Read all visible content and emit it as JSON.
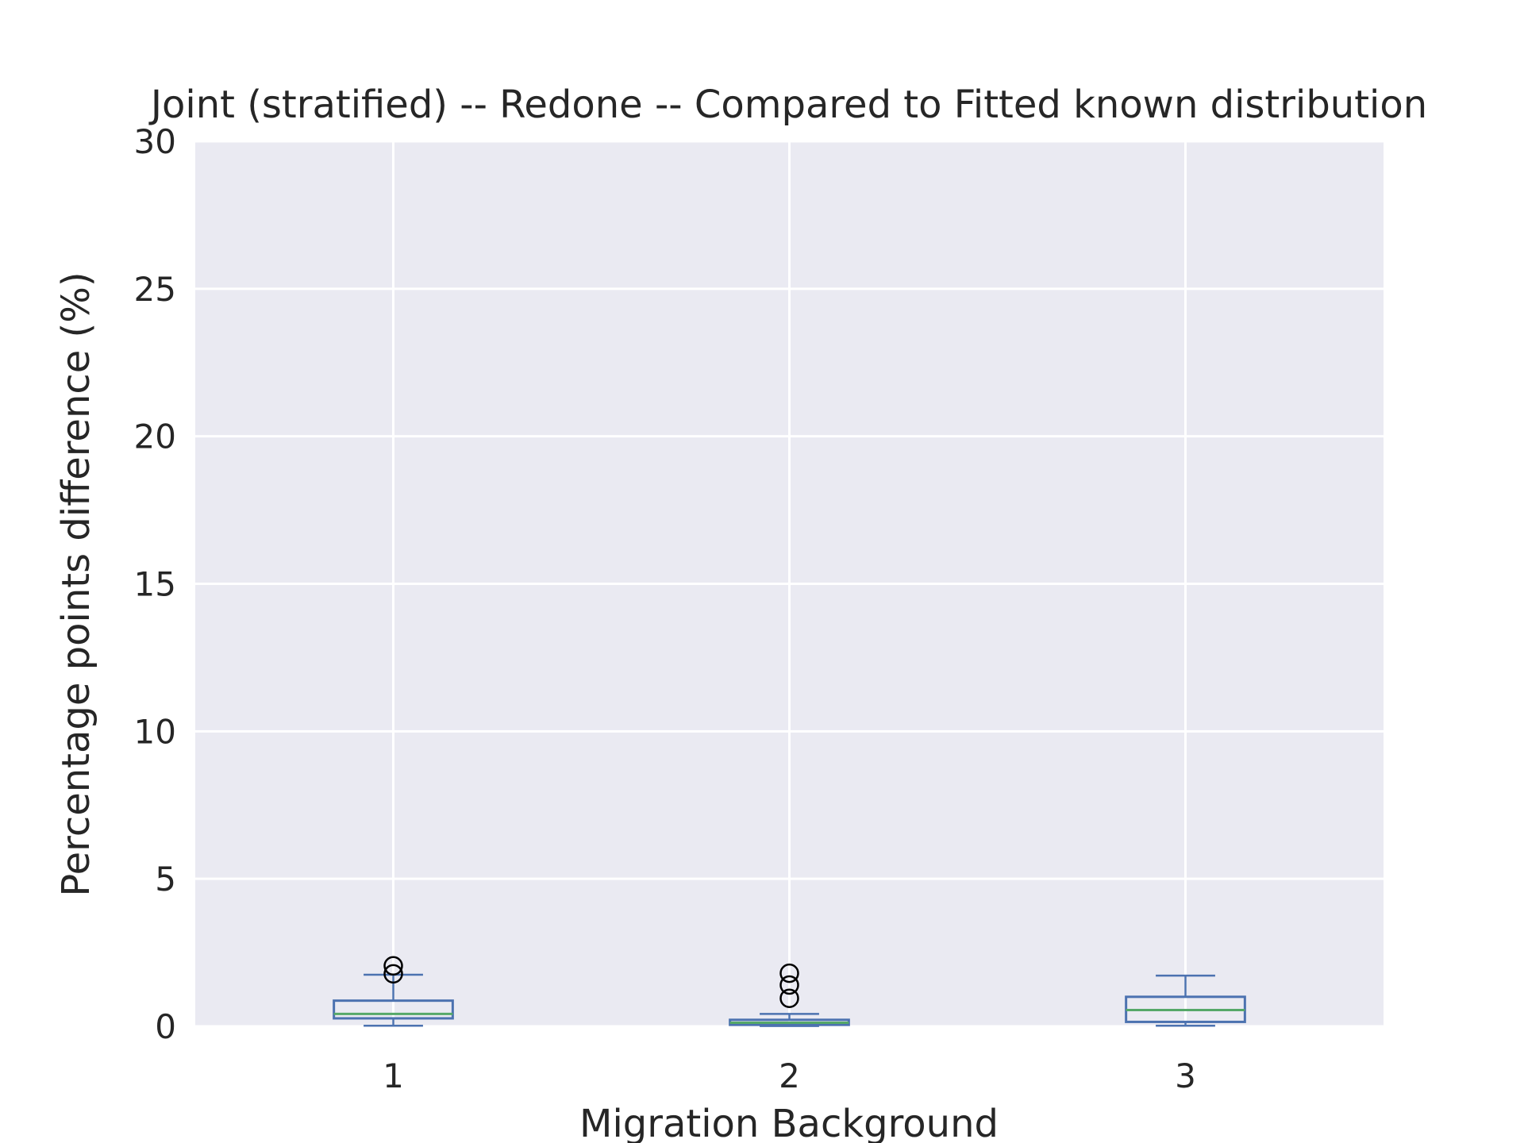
{
  "chart_data": {
    "type": "box",
    "title": "Joint (stratified) -- Redone -- Compared to Fitted known distribution",
    "xlabel": "Migration Background",
    "ylabel": "Percentage points difference (%)",
    "ylim": [
      0,
      30
    ],
    "yticks": [
      "0",
      "5",
      "10",
      "15",
      "20",
      "25",
      "30"
    ],
    "categories": [
      "1",
      "2",
      "3"
    ],
    "grid": true,
    "colors": {
      "plot_background": "#eaeaf2",
      "grid": "#ffffff",
      "box": "#4c72b0",
      "median": "#55a868",
      "outlier": "#000000"
    },
    "boxes": [
      {
        "category": "1",
        "whisker_low": 0.02,
        "q1": 0.27,
        "median": 0.42,
        "q3": 0.87,
        "whisker_high": 1.75,
        "outliers": [
          1.78,
          2.05
        ]
      },
      {
        "category": "2",
        "whisker_low": 0.01,
        "q1": 0.05,
        "median": 0.12,
        "q3": 0.22,
        "whisker_high": 0.42,
        "outliers": [
          0.95,
          1.4,
          1.8
        ]
      },
      {
        "category": "3",
        "whisker_low": 0.02,
        "q1": 0.15,
        "median": 0.55,
        "q3": 1.0,
        "whisker_high": 1.72,
        "outliers": []
      }
    ]
  }
}
